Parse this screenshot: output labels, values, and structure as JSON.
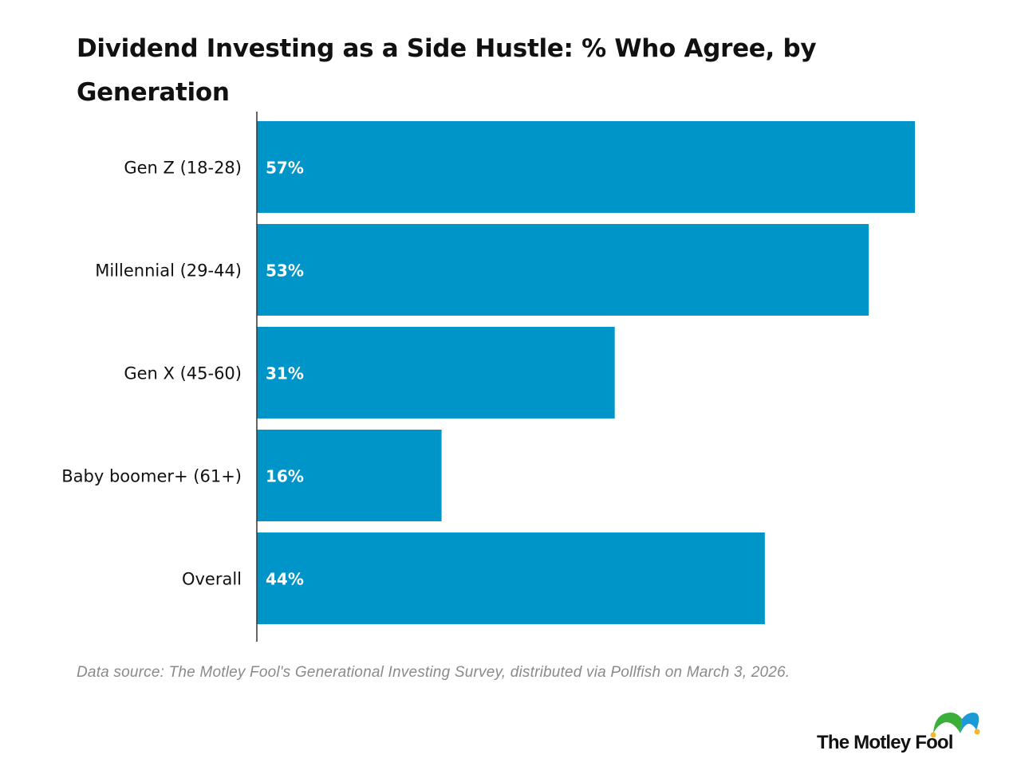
{
  "chart_data": {
    "type": "bar",
    "orientation": "horizontal",
    "title": "Dividend Investing as a Side Hustle: % Who Agree, by Generation",
    "categories": [
      "Gen Z (18-28)",
      "Millennial (29-44)",
      "Gen X (45-60)",
      "Baby boomer+ (61+)",
      "Overall"
    ],
    "values": [
      57,
      53,
      31,
      16,
      44
    ],
    "data_labels": [
      "57%",
      "53%",
      "31%",
      "16%",
      "44%"
    ],
    "xlabel": "",
    "ylabel": "",
    "xlim": [
      0,
      57
    ],
    "grid": false,
    "bar_color": "#0095c8"
  },
  "source": "Data source: The Motley Fool's Generational Investing Survey, distributed via Pollfish on March 3, 2026.",
  "logo": {
    "text": "The Motley Fool",
    "colors": {
      "green": "#3cae3a",
      "blue": "#1a9ad6",
      "gold": "#f5b82e"
    }
  }
}
